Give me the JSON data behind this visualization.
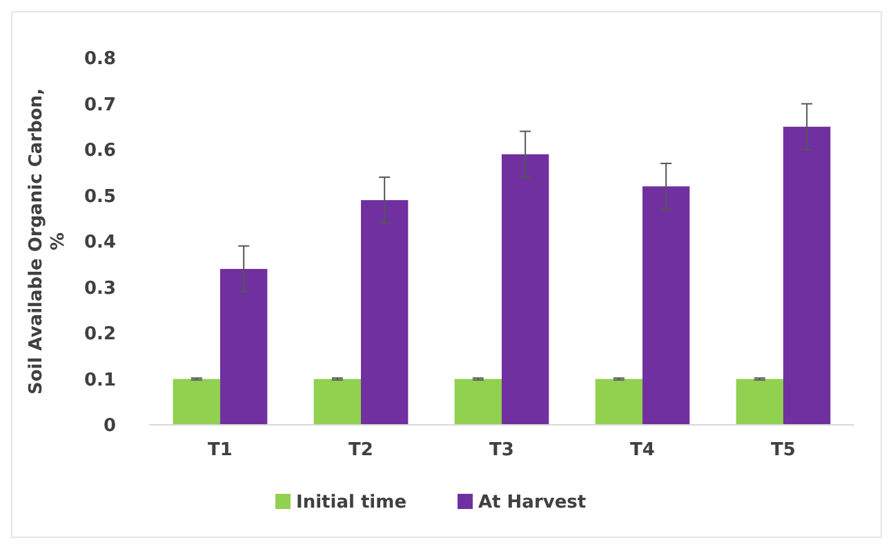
{
  "chart_data": {
    "type": "bar",
    "ylabel": "Soil Available Organic Carbon, %",
    "categories": [
      "T1",
      "T2",
      "T3",
      "T4",
      "T5"
    ],
    "series": [
      {
        "name": "Initial time",
        "color": "#92d050",
        "values": [
          0.1,
          0.1,
          0.1,
          0.1,
          0.1
        ],
        "errors": [
          0.002,
          0.002,
          0.002,
          0.002,
          0.002
        ]
      },
      {
        "name": "At Harvest",
        "color": "#7030a0",
        "values": [
          0.34,
          0.49,
          0.59,
          0.52,
          0.65
        ],
        "errors": [
          0.05,
          0.05,
          0.05,
          0.05,
          0.05
        ]
      }
    ],
    "ylim": [
      0,
      0.8
    ],
    "yticks": [
      0,
      0.1,
      0.2,
      0.3,
      0.4,
      0.5,
      0.6,
      0.7,
      0.8
    ],
    "grid": false,
    "legend": "bottom"
  }
}
